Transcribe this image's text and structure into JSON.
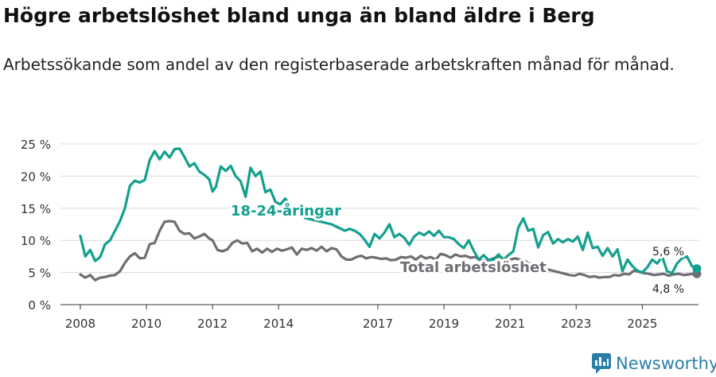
{
  "title": "Högre arbetslöshet bland unga än bland äldre i Berg",
  "subtitle": "Arbetssökande som andel av den registerbaserade arbetskraften månad för månad.",
  "brand": "Newsworthy",
  "colors": {
    "youth": "#13a08e",
    "total": "#6e6e73",
    "grid": "#dcdcdc",
    "axis": "#333333",
    "brand": "#2a7fa8"
  },
  "chart_data": {
    "type": "line",
    "title": "Högre arbetslöshet bland unga än bland äldre i Berg",
    "xlabel": "",
    "ylabel": "",
    "xlim": [
      2007.4,
      2026.7
    ],
    "ylim": [
      0,
      25
    ],
    "yticks": [
      0,
      5,
      10,
      15,
      20,
      25
    ],
    "ytick_labels": [
      "0 %",
      "5 %",
      "10 %",
      "15 %",
      "20 %",
      "25 %"
    ],
    "xticks": [
      2008,
      2010,
      2012,
      2014,
      2017,
      2019,
      2021,
      2023,
      2025
    ],
    "xtick_labels": [
      "2008",
      "2010",
      "2012",
      "2014",
      "2017",
      "2019",
      "2021",
      "2023",
      "2025"
    ],
    "grid": true,
    "series": [
      {
        "name": "18-24-åringar",
        "label": "18-24-åringar",
        "color": "#13a08e",
        "end_label": "5,6 %",
        "points": [
          [
            2008.0,
            10.7
          ],
          [
            2008.15,
            7.5
          ],
          [
            2008.3,
            8.5
          ],
          [
            2008.45,
            6.8
          ],
          [
            2008.6,
            7.4
          ],
          [
            2008.75,
            9.4
          ],
          [
            2008.9,
            10.0
          ],
          [
            2009.05,
            11.5
          ],
          [
            2009.2,
            13.0
          ],
          [
            2009.35,
            15.0
          ],
          [
            2009.5,
            18.5
          ],
          [
            2009.65,
            19.3
          ],
          [
            2009.8,
            19.0
          ],
          [
            2009.95,
            19.4
          ],
          [
            2010.1,
            22.5
          ],
          [
            2010.25,
            23.9
          ],
          [
            2010.4,
            22.6
          ],
          [
            2010.55,
            23.8
          ],
          [
            2010.7,
            22.9
          ],
          [
            2010.85,
            24.2
          ],
          [
            2011.0,
            24.3
          ],
          [
            2011.15,
            23.0
          ],
          [
            2011.3,
            21.5
          ],
          [
            2011.45,
            22.0
          ],
          [
            2011.6,
            20.7
          ],
          [
            2011.75,
            20.2
          ],
          [
            2011.9,
            19.5
          ],
          [
            2012.0,
            17.6
          ],
          [
            2012.1,
            18.3
          ],
          [
            2012.25,
            21.5
          ],
          [
            2012.4,
            20.8
          ],
          [
            2012.55,
            21.6
          ],
          [
            2012.7,
            20.0
          ],
          [
            2012.85,
            19.2
          ],
          [
            2013.0,
            16.8
          ],
          [
            2013.15,
            21.3
          ],
          [
            2013.3,
            20.0
          ],
          [
            2013.45,
            20.7
          ],
          [
            2013.6,
            17.5
          ],
          [
            2013.75,
            17.9
          ],
          [
            2013.9,
            16.0
          ],
          [
            2014.05,
            15.6
          ],
          [
            2014.2,
            16.5
          ],
          [
            2014.35,
            15.3
          ],
          [
            2014.5,
            14.5
          ],
          [
            2014.65,
            14.6
          ],
          [
            2014.8,
            13.5
          ],
          [
            2015.6,
            12.5
          ],
          [
            2015.8,
            12.0
          ],
          [
            2016.0,
            11.5
          ],
          [
            2016.15,
            11.8
          ],
          [
            2016.3,
            11.5
          ],
          [
            2016.45,
            11.0
          ],
          [
            2016.6,
            10.1
          ],
          [
            2016.75,
            9.0
          ],
          [
            2016.9,
            11.0
          ],
          [
            2017.05,
            10.3
          ],
          [
            2017.2,
            11.2
          ],
          [
            2017.35,
            12.5
          ],
          [
            2017.5,
            10.5
          ],
          [
            2017.65,
            11.0
          ],
          [
            2017.8,
            10.4
          ],
          [
            2017.95,
            9.3
          ],
          [
            2018.1,
            10.6
          ],
          [
            2018.25,
            11.2
          ],
          [
            2018.4,
            10.8
          ],
          [
            2018.55,
            11.4
          ],
          [
            2018.7,
            10.7
          ],
          [
            2018.85,
            11.5
          ],
          [
            2019.0,
            10.5
          ],
          [
            2019.15,
            10.5
          ],
          [
            2019.3,
            10.2
          ],
          [
            2019.45,
            9.4
          ],
          [
            2019.6,
            8.8
          ],
          [
            2019.75,
            10.0
          ],
          [
            2019.9,
            8.4
          ],
          [
            2020.05,
            7.0
          ],
          [
            2020.2,
            7.7
          ],
          [
            2020.35,
            6.9
          ],
          [
            2020.5,
            7.0
          ],
          [
            2020.65,
            7.8
          ],
          [
            2020.8,
            7.0
          ],
          [
            2020.95,
            7.7
          ],
          [
            2021.1,
            8.3
          ],
          [
            2021.25,
            12.0
          ],
          [
            2021.4,
            13.4
          ],
          [
            2021.55,
            11.5
          ],
          [
            2021.7,
            11.8
          ],
          [
            2021.85,
            8.9
          ],
          [
            2022.0,
            10.8
          ],
          [
            2022.15,
            11.3
          ],
          [
            2022.3,
            9.5
          ],
          [
            2022.45,
            10.2
          ],
          [
            2022.6,
            9.7
          ],
          [
            2022.75,
            10.2
          ],
          [
            2022.9,
            9.8
          ],
          [
            2023.05,
            10.6
          ],
          [
            2023.2,
            8.5
          ],
          [
            2023.35,
            11.2
          ],
          [
            2023.5,
            8.8
          ],
          [
            2023.65,
            9.0
          ],
          [
            2023.8,
            7.6
          ],
          [
            2023.95,
            8.8
          ],
          [
            2024.1,
            7.5
          ],
          [
            2024.25,
            8.6
          ],
          [
            2024.4,
            5.2
          ],
          [
            2024.55,
            7.0
          ],
          [
            2024.7,
            6.0
          ],
          [
            2024.85,
            5.3
          ],
          [
            2025.0,
            5.0
          ],
          [
            2025.15,
            5.8
          ],
          [
            2025.3,
            7.0
          ],
          [
            2025.45,
            6.4
          ],
          [
            2025.6,
            7.5
          ],
          [
            2025.75,
            5.2
          ],
          [
            2025.9,
            4.9
          ],
          [
            2026.05,
            6.4
          ],
          [
            2026.2,
            7.2
          ],
          [
            2026.35,
            7.5
          ],
          [
            2026.5,
            6.0
          ],
          [
            2026.65,
            5.6
          ]
        ]
      },
      {
        "name": "Total arbetslöshet",
        "label": "Total arbetslöshet",
        "color": "#6e6e73",
        "end_label": "4,8 %",
        "points": [
          [
            2008.0,
            4.7
          ],
          [
            2008.15,
            4.2
          ],
          [
            2008.3,
            4.6
          ],
          [
            2008.45,
            3.8
          ],
          [
            2008.6,
            4.2
          ],
          [
            2008.75,
            4.3
          ],
          [
            2008.9,
            4.5
          ],
          [
            2009.05,
            4.6
          ],
          [
            2009.2,
            5.2
          ],
          [
            2009.35,
            6.5
          ],
          [
            2009.5,
            7.5
          ],
          [
            2009.65,
            8.0
          ],
          [
            2009.8,
            7.2
          ],
          [
            2009.95,
            7.3
          ],
          [
            2010.1,
            9.4
          ],
          [
            2010.25,
            9.6
          ],
          [
            2010.4,
            11.5
          ],
          [
            2010.55,
            12.9
          ],
          [
            2010.7,
            13.0
          ],
          [
            2010.85,
            12.9
          ],
          [
            2011.0,
            11.5
          ],
          [
            2011.15,
            11.0
          ],
          [
            2011.3,
            11.1
          ],
          [
            2011.45,
            10.3
          ],
          [
            2011.6,
            10.6
          ],
          [
            2011.75,
            11.0
          ],
          [
            2011.9,
            10.3
          ],
          [
            2012.0,
            10.0
          ],
          [
            2012.15,
            8.5
          ],
          [
            2012.3,
            8.3
          ],
          [
            2012.45,
            8.6
          ],
          [
            2012.6,
            9.6
          ],
          [
            2012.75,
            10.0
          ],
          [
            2012.9,
            9.5
          ],
          [
            2013.05,
            9.6
          ],
          [
            2013.2,
            8.3
          ],
          [
            2013.35,
            8.7
          ],
          [
            2013.5,
            8.1
          ],
          [
            2013.65,
            8.7
          ],
          [
            2013.8,
            8.2
          ],
          [
            2013.95,
            8.7
          ],
          [
            2014.1,
            8.4
          ],
          [
            2014.25,
            8.6
          ],
          [
            2014.4,
            8.9
          ],
          [
            2014.55,
            7.8
          ],
          [
            2014.7,
            8.7
          ],
          [
            2014.85,
            8.5
          ],
          [
            2015.0,
            8.8
          ],
          [
            2015.15,
            8.4
          ],
          [
            2015.3,
            9.0
          ],
          [
            2015.45,
            8.3
          ],
          [
            2015.6,
            8.8
          ],
          [
            2015.75,
            8.6
          ],
          [
            2015.9,
            7.5
          ],
          [
            2016.05,
            7.0
          ],
          [
            2016.2,
            7.0
          ],
          [
            2016.35,
            7.4
          ],
          [
            2016.5,
            7.6
          ],
          [
            2016.65,
            7.2
          ],
          [
            2016.8,
            7.4
          ],
          [
            2016.95,
            7.3
          ],
          [
            2017.1,
            7.1
          ],
          [
            2017.25,
            7.2
          ],
          [
            2017.4,
            6.9
          ],
          [
            2017.55,
            7.0
          ],
          [
            2017.7,
            7.4
          ],
          [
            2017.85,
            7.3
          ],
          [
            2018.0,
            7.5
          ],
          [
            2018.15,
            7.0
          ],
          [
            2018.3,
            7.6
          ],
          [
            2018.45,
            7.2
          ],
          [
            2018.6,
            7.4
          ],
          [
            2018.75,
            7.0
          ],
          [
            2018.9,
            7.9
          ],
          [
            2019.05,
            7.7
          ],
          [
            2019.2,
            7.3
          ],
          [
            2019.35,
            7.8
          ],
          [
            2019.5,
            7.5
          ],
          [
            2019.65,
            7.6
          ],
          [
            2019.8,
            7.3
          ],
          [
            2019.95,
            7.4
          ],
          [
            2020.1,
            6.9
          ],
          [
            2020.25,
            6.8
          ],
          [
            2020.4,
            7.0
          ],
          [
            2020.55,
            7.3
          ],
          [
            2020.7,
            7.5
          ],
          [
            2020.85,
            6.8
          ],
          [
            2021.0,
            7.0
          ],
          [
            2021.15,
            7.2
          ],
          [
            2021.3,
            7.0
          ],
          [
            2021.45,
            6.8
          ],
          [
            2021.6,
            6.3
          ],
          [
            2021.75,
            6.0
          ],
          [
            2021.9,
            5.8
          ],
          [
            2022.05,
            5.6
          ],
          [
            2022.2,
            5.4
          ],
          [
            2022.35,
            5.2
          ],
          [
            2022.5,
            5.0
          ],
          [
            2022.65,
            4.8
          ],
          [
            2022.8,
            4.6
          ],
          [
            2022.95,
            4.5
          ],
          [
            2023.1,
            4.8
          ],
          [
            2023.25,
            4.6
          ],
          [
            2023.4,
            4.3
          ],
          [
            2023.55,
            4.4
          ],
          [
            2023.7,
            4.2
          ],
          [
            2023.85,
            4.3
          ],
          [
            2024.0,
            4.3
          ],
          [
            2024.15,
            4.6
          ],
          [
            2024.3,
            4.5
          ],
          [
            2024.45,
            4.8
          ],
          [
            2024.6,
            4.7
          ],
          [
            2024.75,
            5.3
          ],
          [
            2024.9,
            5.1
          ],
          [
            2025.05,
            4.9
          ],
          [
            2025.2,
            4.8
          ],
          [
            2025.35,
            4.6
          ],
          [
            2025.5,
            4.7
          ],
          [
            2025.65,
            4.8
          ],
          [
            2025.8,
            4.5
          ],
          [
            2025.95,
            4.7
          ],
          [
            2026.1,
            4.8
          ],
          [
            2026.25,
            4.6
          ],
          [
            2026.4,
            4.7
          ],
          [
            2026.55,
            4.8
          ],
          [
            2026.65,
            4.8
          ]
        ]
      }
    ]
  }
}
